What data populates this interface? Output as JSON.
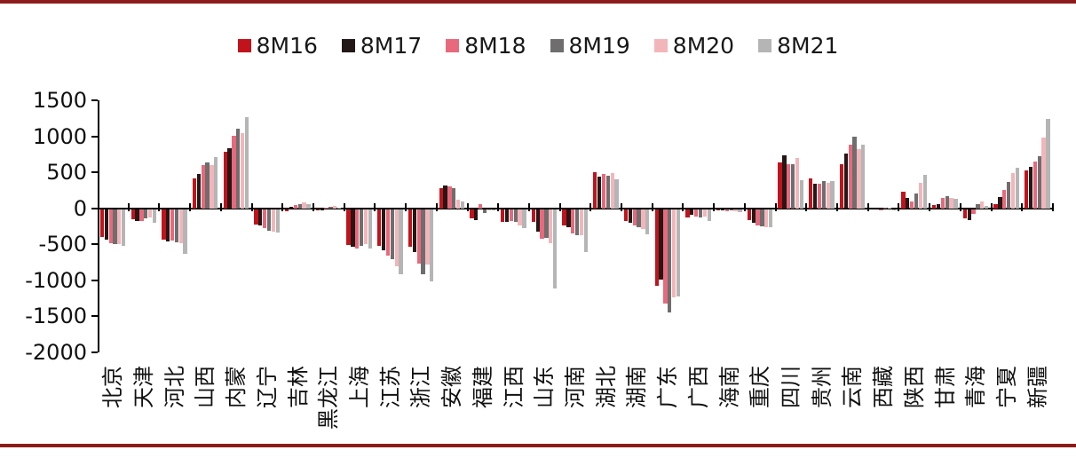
{
  "page": {
    "background": "#ffffff",
    "rule_color": "#8e1b1b"
  },
  "chart_data": {
    "type": "bar",
    "title": "",
    "legend_position": "top",
    "grid": false,
    "axis_color": "#000000",
    "text_color": "#111111",
    "categories": [
      "北京",
      "天津",
      "河北",
      "山西",
      "内蒙",
      "辽宁",
      "吉林",
      "黑龙江",
      "上海",
      "江苏",
      "浙江",
      "安徽",
      "福建",
      "江西",
      "山东",
      "河南",
      "湖北",
      "湖南",
      "广东",
      "广西",
      "海南",
      "重庆",
      "四川",
      "贵州",
      "云南",
      "西藏",
      "陕西",
      "甘肃",
      "青海",
      "宁夏",
      "新疆"
    ],
    "series": [
      {
        "name": "8M16",
        "color": "#c2121c",
        "values": [
          -380,
          -140,
          -425,
          420,
          790,
          -210,
          -30,
          -15,
          -500,
          -505,
          -520,
          280,
          -130,
          -180,
          -180,
          -225,
          500,
          -170,
          -1060,
          -110,
          -10,
          -155,
          640,
          410,
          610,
          0,
          230,
          40,
          -130,
          60,
          530
        ]
      },
      {
        "name": "8M17",
        "color": "#231815",
        "values": [
          -420,
          -170,
          -445,
          480,
          835,
          -230,
          20,
          -10,
          -525,
          -565,
          -600,
          320,
          -150,
          -180,
          -310,
          -255,
          440,
          -190,
          -980,
          -75,
          -15,
          -190,
          735,
          345,
          765,
          0,
          150,
          60,
          -155,
          155,
          570
        ]
      },
      {
        "name": "8M18",
        "color": "#e8697c",
        "values": [
          -470,
          -160,
          -435,
          595,
          1005,
          -265,
          45,
          10,
          -545,
          -650,
          -750,
          310,
          55,
          -160,
          -410,
          -340,
          475,
          -230,
          -1310,
          -105,
          -30,
          -225,
          610,
          345,
          880,
          -5,
          100,
          140,
          -60,
          260,
          655
        ]
      },
      {
        "name": "8M19",
        "color": "#6f6d6e",
        "values": [
          -490,
          -130,
          -455,
          635,
          1100,
          -295,
          60,
          20,
          -510,
          -690,
          -900,
          285,
          -50,
          -175,
          -400,
          -355,
          455,
          -250,
          -1435,
          -120,
          -20,
          -235,
          610,
          375,
          1000,
          5,
          200,
          175,
          55,
          365,
          725
        ]
      },
      {
        "name": "8M20",
        "color": "#f2b6ba",
        "values": [
          -480,
          -115,
          -475,
          605,
          1040,
          -315,
          85,
          30,
          -480,
          -790,
          -770,
          115,
          -20,
          -220,
          -470,
          -355,
          495,
          -270,
          -1225,
          -105,
          -25,
          -245,
          695,
          355,
          825,
          5,
          350,
          150,
          95,
          490,
          985
        ]
      },
      {
        "name": "8M21",
        "color": "#b5b5b6",
        "values": [
          -510,
          -185,
          -625,
          710,
          1265,
          -320,
          60,
          10,
          -550,
          -900,
          -1000,
          95,
          -15,
          -260,
          -1100,
          -590,
          405,
          -350,
          -1210,
          -160,
          -35,
          -255,
          385,
          375,
          885,
          -10,
          460,
          130,
          35,
          560,
          1245
        ]
      }
    ],
    "y_axis": {
      "min": -2000,
      "max": 1500,
      "tick_step": 500,
      "tick_labels": [
        "1500",
        "1000",
        "500",
        "0",
        "-500",
        "-1000",
        "-1500",
        "-2000"
      ]
    },
    "x_axis": {
      "label_rotation": -90
    }
  }
}
